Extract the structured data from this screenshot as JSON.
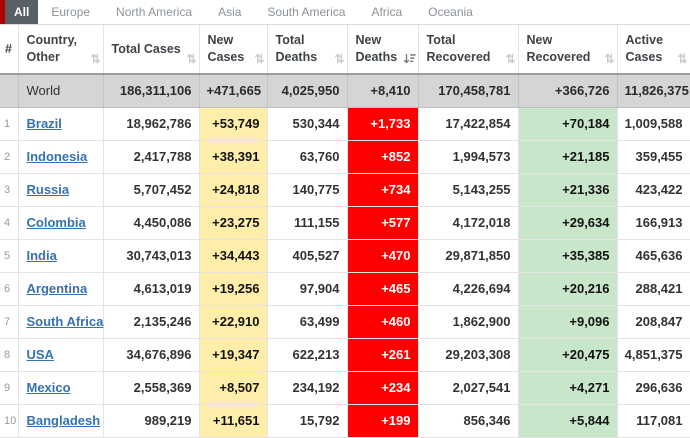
{
  "tabs": {
    "items": [
      {
        "label": "All",
        "active": true
      },
      {
        "label": "Europe",
        "active": false
      },
      {
        "label": "North America",
        "active": false
      },
      {
        "label": "Asia",
        "active": false
      },
      {
        "label": "South America",
        "active": false
      },
      {
        "label": "Africa",
        "active": false
      },
      {
        "label": "Oceania",
        "active": false
      }
    ]
  },
  "table": {
    "columns": [
      {
        "key": "rank",
        "label": "#",
        "sortable": false
      },
      {
        "key": "country",
        "label": "Country, Other",
        "sortable": true,
        "sorted": null
      },
      {
        "key": "total_cases",
        "label": "Total Cases",
        "sortable": true,
        "sorted": null
      },
      {
        "key": "new_cases",
        "label": "New Cases",
        "sortable": true,
        "sorted": null
      },
      {
        "key": "total_deaths",
        "label": "Total Deaths",
        "sortable": true,
        "sorted": null
      },
      {
        "key": "new_deaths",
        "label": "New Deaths",
        "sortable": true,
        "sorted": "desc"
      },
      {
        "key": "total_recovered",
        "label": "Total Recovered",
        "sortable": true,
        "sorted": null
      },
      {
        "key": "new_recovered",
        "label": "New Recovered",
        "sortable": true,
        "sorted": null
      },
      {
        "key": "active_cases",
        "label": "Active Cases",
        "sortable": true,
        "sorted": null
      }
    ],
    "world_row": {
      "country": "World",
      "total_cases": "186,311,106",
      "new_cases": "+471,665",
      "total_deaths": "4,025,950",
      "new_deaths": "+8,410",
      "total_recovered": "170,458,781",
      "new_recovered": "+366,726",
      "active_cases": "11,826,375"
    },
    "rows": [
      {
        "rank": "1",
        "country": "Brazil",
        "total_cases": "18,962,786",
        "new_cases": "+53,749",
        "total_deaths": "530,344",
        "new_deaths": "+1,733",
        "total_recovered": "17,422,854",
        "new_recovered": "+70,184",
        "active_cases": "1,009,588"
      },
      {
        "rank": "2",
        "country": "Indonesia",
        "total_cases": "2,417,788",
        "new_cases": "+38,391",
        "total_deaths": "63,760",
        "new_deaths": "+852",
        "total_recovered": "1,994,573",
        "new_recovered": "+21,185",
        "active_cases": "359,455"
      },
      {
        "rank": "3",
        "country": "Russia",
        "total_cases": "5,707,452",
        "new_cases": "+24,818",
        "total_deaths": "140,775",
        "new_deaths": "+734",
        "total_recovered": "5,143,255",
        "new_recovered": "+21,336",
        "active_cases": "423,422"
      },
      {
        "rank": "4",
        "country": "Colombia",
        "total_cases": "4,450,086",
        "new_cases": "+23,275",
        "total_deaths": "111,155",
        "new_deaths": "+577",
        "total_recovered": "4,172,018",
        "new_recovered": "+29,634",
        "active_cases": "166,913"
      },
      {
        "rank": "5",
        "country": "India",
        "total_cases": "30,743,013",
        "new_cases": "+34,443",
        "total_deaths": "405,527",
        "new_deaths": "+470",
        "total_recovered": "29,871,850",
        "new_recovered": "+35,385",
        "active_cases": "465,636"
      },
      {
        "rank": "6",
        "country": "Argentina",
        "total_cases": "4,613,019",
        "new_cases": "+19,256",
        "total_deaths": "97,904",
        "new_deaths": "+465",
        "total_recovered": "4,226,694",
        "new_recovered": "+20,216",
        "active_cases": "288,421"
      },
      {
        "rank": "7",
        "country": "South Africa",
        "total_cases": "2,135,246",
        "new_cases": "+22,910",
        "total_deaths": "63,499",
        "new_deaths": "+460",
        "total_recovered": "1,862,900",
        "new_recovered": "+9,096",
        "active_cases": "208,847"
      },
      {
        "rank": "8",
        "country": "USA",
        "total_cases": "34,676,896",
        "new_cases": "+19,347",
        "total_deaths": "622,213",
        "new_deaths": "+261",
        "total_recovered": "29,203,308",
        "new_recovered": "+20,475",
        "active_cases": "4,851,375"
      },
      {
        "rank": "9",
        "country": "Mexico",
        "total_cases": "2,558,369",
        "new_cases": "+8,507",
        "total_deaths": "234,192",
        "new_deaths": "+234",
        "total_recovered": "2,027,541",
        "new_recovered": "+4,271",
        "active_cases": "296,636"
      },
      {
        "rank": "10",
        "country": "Bangladesh",
        "total_cases": "989,219",
        "new_cases": "+11,651",
        "total_deaths": "15,792",
        "new_deaths": "+199",
        "total_recovered": "856,346",
        "new_recovered": "+5,844",
        "active_cases": "117,081"
      }
    ]
  },
  "colors": {
    "new_cases_bg": "#FFEEAA",
    "new_deaths_bg": "#FE0000",
    "new_recovered_bg": "#C8E6C9",
    "world_row_bg": "#D5D5D5",
    "active_tab_bg": "#585F66",
    "link_blue": "#3572B0",
    "edge_accent_red": "#B40000"
  },
  "icons": {
    "sort_inactive": "sort-both-icon",
    "sort_active_desc": "sort-amount-desc-icon"
  }
}
